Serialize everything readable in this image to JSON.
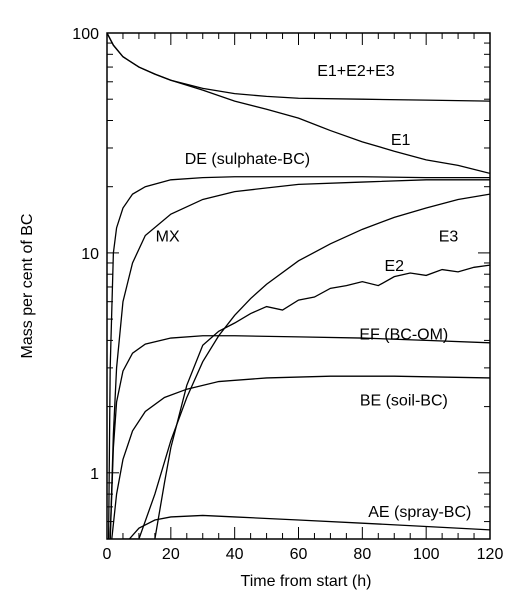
{
  "chart_data": {
    "type": "line",
    "title": "",
    "xlabel": "Time from start (h)",
    "ylabel": "Mass per cent of BC",
    "xlim": [
      0,
      120
    ],
    "ylim": [
      0.5,
      100
    ],
    "yscale": "log",
    "grid": false,
    "x_ticks": [
      "0",
      "20",
      "40",
      "60",
      "80",
      "100",
      "120"
    ],
    "y_ticks": [
      "1",
      "10",
      "100"
    ],
    "series": [
      {
        "name": "E1+E2+E3",
        "x": [
          0,
          2,
          5,
          10,
          15,
          20,
          30,
          40,
          50,
          60,
          80,
          100,
          120
        ],
        "y": [
          100,
          88,
          78,
          70,
          65,
          61,
          56,
          53,
          51.5,
          50.5,
          50,
          49.5,
          49
        ]
      },
      {
        "name": "E1",
        "x": [
          0,
          2,
          5,
          10,
          15,
          20,
          30,
          40,
          50,
          60,
          70,
          80,
          90,
          100,
          110,
          120
        ],
        "y": [
          100,
          88,
          78,
          70,
          65,
          61,
          55,
          49,
          45,
          41,
          36,
          32,
          29,
          26.5,
          25,
          23
        ]
      },
      {
        "name": "DE (sulphate-BC)",
        "x": [
          0.5,
          1,
          2,
          3,
          5,
          8,
          12,
          20,
          30,
          40,
          60,
          80,
          100,
          120
        ],
        "y": [
          0.5,
          3,
          10,
          13,
          16,
          18.5,
          20,
          21.5,
          22,
          22.2,
          22.2,
          22.2,
          22,
          22
        ]
      },
      {
        "name": "MX",
        "x": [
          1,
          2,
          3,
          5,
          8,
          12,
          20,
          30,
          40,
          60,
          80,
          100,
          120
        ],
        "y": [
          0.5,
          1.5,
          3,
          6,
          9,
          12,
          15,
          17.5,
          19,
          20.5,
          21,
          21.5,
          21.5
        ]
      },
      {
        "name": "E3",
        "x": [
          5,
          10,
          15,
          20,
          25,
          30,
          35,
          40,
          45,
          50,
          60,
          70,
          80,
          90,
          100,
          110,
          120
        ],
        "y": [
          0.5,
          0.5,
          0.8,
          1.4,
          2.2,
          3.2,
          4.2,
          5.2,
          6.2,
          7.2,
          9.2,
          11,
          12.8,
          14.5,
          16,
          17.5,
          18.5
        ]
      },
      {
        "name": "E2",
        "x": [
          15,
          18,
          20,
          25,
          30,
          35,
          40,
          45,
          50,
          55,
          60,
          65,
          70,
          75,
          80,
          85,
          90,
          95,
          100,
          105,
          110,
          115,
          120
        ],
        "y": [
          0.5,
          0.9,
          1.3,
          2.5,
          3.8,
          4.4,
          4.8,
          5.3,
          5.7,
          5.5,
          6.1,
          6.3,
          6.9,
          7.1,
          7.4,
          7.1,
          7.8,
          8.1,
          7.9,
          8.4,
          8.2,
          8.6,
          8.8
        ]
      },
      {
        "name": "EF (BC-OM)",
        "x": [
          1,
          2,
          3,
          5,
          8,
          12,
          20,
          30,
          40,
          60,
          80,
          100,
          120
        ],
        "y": [
          0.5,
          1.3,
          2.1,
          2.9,
          3.5,
          3.85,
          4.1,
          4.2,
          4.2,
          4.15,
          4.1,
          4.0,
          3.9
        ]
      },
      {
        "name": "BE  (soil-BC)",
        "x": [
          1.5,
          3,
          5,
          8,
          12,
          18,
          25,
          35,
          50,
          70,
          90,
          120
        ],
        "y": [
          0.5,
          0.8,
          1.15,
          1.55,
          1.9,
          2.2,
          2.4,
          2.6,
          2.7,
          2.75,
          2.75,
          2.7
        ]
      },
      {
        "name": "AE (spray-BC)",
        "x": [
          7,
          10,
          15,
          20,
          30,
          40,
          60,
          80,
          100,
          120
        ],
        "y": [
          0.5,
          0.56,
          0.61,
          0.63,
          0.64,
          0.63,
          0.61,
          0.59,
          0.57,
          0.55
        ]
      }
    ],
    "labels": [
      {
        "text": "E1+E2+E3",
        "x": 78,
        "y": 68
      },
      {
        "text": "E1",
        "x": 92,
        "y": 33
      },
      {
        "text": "DE (sulphate-BC)",
        "x": 44,
        "y": 27
      },
      {
        "text": "MX",
        "x": 19,
        "y": 12
      },
      {
        "text": "E3",
        "x": 107,
        "y": 12
      },
      {
        "text": "E2",
        "x": 90,
        "y": 8.8
      },
      {
        "text": "EF (BC-OM)",
        "x": 93,
        "y": 4.3
      },
      {
        "text": "BE  (soil-BC)",
        "x": 93,
        "y": 2.15
      },
      {
        "text": "AE (spray-BC)",
        "x": 98,
        "y": 0.67
      }
    ]
  }
}
